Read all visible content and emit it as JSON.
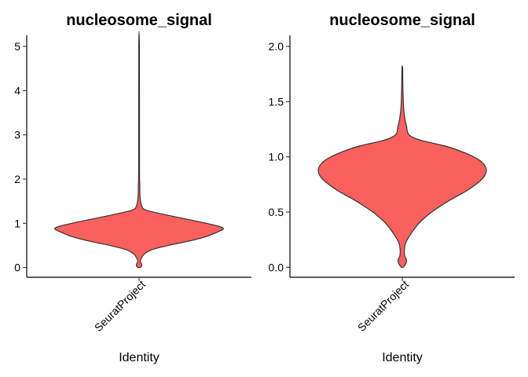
{
  "chart_data": [
    {
      "type": "violin",
      "title": "nucleosome_signal",
      "xlabel": "Identity",
      "ylabel": "",
      "categories": [
        "SeuratProject"
      ],
      "ylim": [
        -0.22,
        5.25
      ],
      "yticks": [
        0,
        1,
        2,
        3,
        4,
        5
      ],
      "ytick_labels": [
        "0",
        "1",
        "2",
        "3",
        "4",
        "5"
      ],
      "fill_color": "#f8615d",
      "outline_color": "#333333",
      "grid": false,
      "legend": "none",
      "density": {
        "y": [
          0.0,
          0.03,
          0.08,
          0.14,
          0.2,
          0.3,
          0.4,
          0.5,
          0.6,
          0.7,
          0.8,
          0.87,
          0.92,
          1.0,
          1.1,
          1.2,
          1.3,
          1.4,
          1.6,
          1.9,
          2.3,
          5.0
        ],
        "width": [
          0.01,
          0.03,
          0.03,
          0.015,
          0.025,
          0.06,
          0.15,
          0.35,
          0.6,
          0.8,
          0.93,
          1.0,
          0.97,
          0.8,
          0.55,
          0.3,
          0.08,
          0.03,
          0.012,
          0.008,
          0.005,
          0.004
        ]
      }
    },
    {
      "type": "violin",
      "title": "nucleosome_signal",
      "xlabel": "Identity",
      "ylabel": "",
      "categories": [
        "SeuratProject"
      ],
      "ylim": [
        -0.09,
        2.1
      ],
      "yticks": [
        0.0,
        0.5,
        1.0,
        1.5,
        2.0
      ],
      "ytick_labels": [
        "0.0",
        "0.5",
        "1.0",
        "1.5",
        "2.0"
      ],
      "fill_color": "#f8615d",
      "outline_color": "#333333",
      "grid": false,
      "legend": "none",
      "density": {
        "y": [
          0.0,
          0.03,
          0.07,
          0.1,
          0.15,
          0.22,
          0.3,
          0.4,
          0.5,
          0.6,
          0.7,
          0.8,
          0.88,
          0.95,
          1.0,
          1.05,
          1.1,
          1.15,
          1.2,
          1.28,
          1.35,
          1.45,
          1.6,
          1.8
        ],
        "width": [
          0.01,
          0.04,
          0.05,
          0.03,
          0.025,
          0.04,
          0.1,
          0.2,
          0.35,
          0.55,
          0.78,
          0.95,
          1.0,
          0.95,
          0.85,
          0.7,
          0.5,
          0.22,
          0.08,
          0.05,
          0.03,
          0.015,
          0.008,
          0.004
        ]
      }
    }
  ]
}
